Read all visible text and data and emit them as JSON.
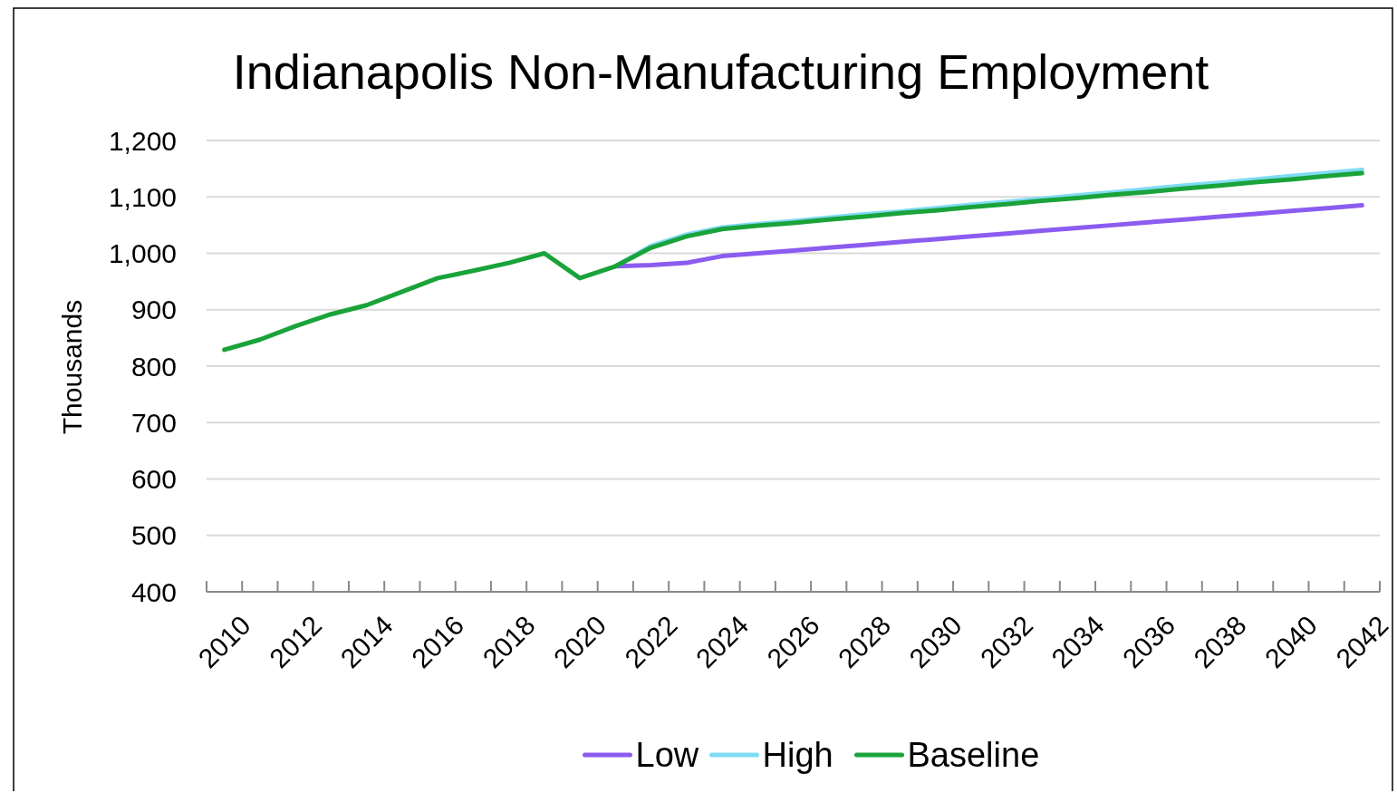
{
  "chart_data": {
    "type": "line",
    "title": "Indianapolis Non-Manufacturing Employment",
    "ylabel": "Thousands",
    "categories": [
      "2010",
      null,
      "2012",
      null,
      "2014",
      null,
      "2016",
      null,
      "2018",
      null,
      "2020",
      null,
      "2022",
      null,
      "2024",
      null,
      "2026",
      null,
      "2028",
      null,
      "2030",
      null,
      "2032",
      null,
      "2034",
      null,
      "2036",
      null,
      "2038",
      null,
      "2040",
      null,
      "2042"
    ],
    "series": [
      {
        "name": "Low",
        "color": "#8b5cf0",
        "values": [
          null,
          null,
          null,
          null,
          null,
          null,
          null,
          null,
          null,
          null,
          null,
          977,
          979,
          983,
          995,
          1000,
          1005,
          1010,
          1015,
          1020,
          1025,
          1030,
          1035,
          1040,
          1045,
          1050,
          1055,
          1060,
          1065,
          1070,
          1075,
          1080,
          1085
        ]
      },
      {
        "name": "High",
        "color": "#7fdcf5",
        "values": [
          null,
          null,
          null,
          null,
          null,
          null,
          null,
          null,
          null,
          null,
          null,
          977,
          1013,
          1033,
          1046,
          1052,
          1057,
          1063,
          1069,
          1074,
          1080,
          1086,
          1091,
          1097,
          1103,
          1108,
          1114,
          1120,
          1125,
          1131,
          1137,
          1142,
          1148
        ]
      },
      {
        "name": "Baseline",
        "color": "#1aa33a",
        "values": [
          829,
          847,
          871,
          892,
          908,
          932,
          956,
          969,
          983,
          1000,
          956,
          977,
          1010,
          1030,
          1043,
          1049,
          1054,
          1060,
          1065,
          1071,
          1076,
          1082,
          1087,
          1093,
          1098,
          1104,
          1109,
          1115,
          1120,
          1126,
          1131,
          1137,
          1142
        ]
      }
    ],
    "ylim": [
      400,
      1200
    ],
    "yticks": [
      {
        "value": 400,
        "label": "400"
      },
      {
        "value": 500,
        "label": "500"
      },
      {
        "value": 600,
        "label": "600"
      },
      {
        "value": 700,
        "label": "700"
      },
      {
        "value": 800,
        "label": "800"
      },
      {
        "value": 900,
        "label": "900"
      },
      {
        "value": 1000,
        "label": "1,000"
      },
      {
        "value": 1100,
        "label": "1,100"
      },
      {
        "value": 1200,
        "label": "1,200"
      }
    ],
    "grid": "y",
    "legend": "bottom",
    "line_style": "solid"
  }
}
